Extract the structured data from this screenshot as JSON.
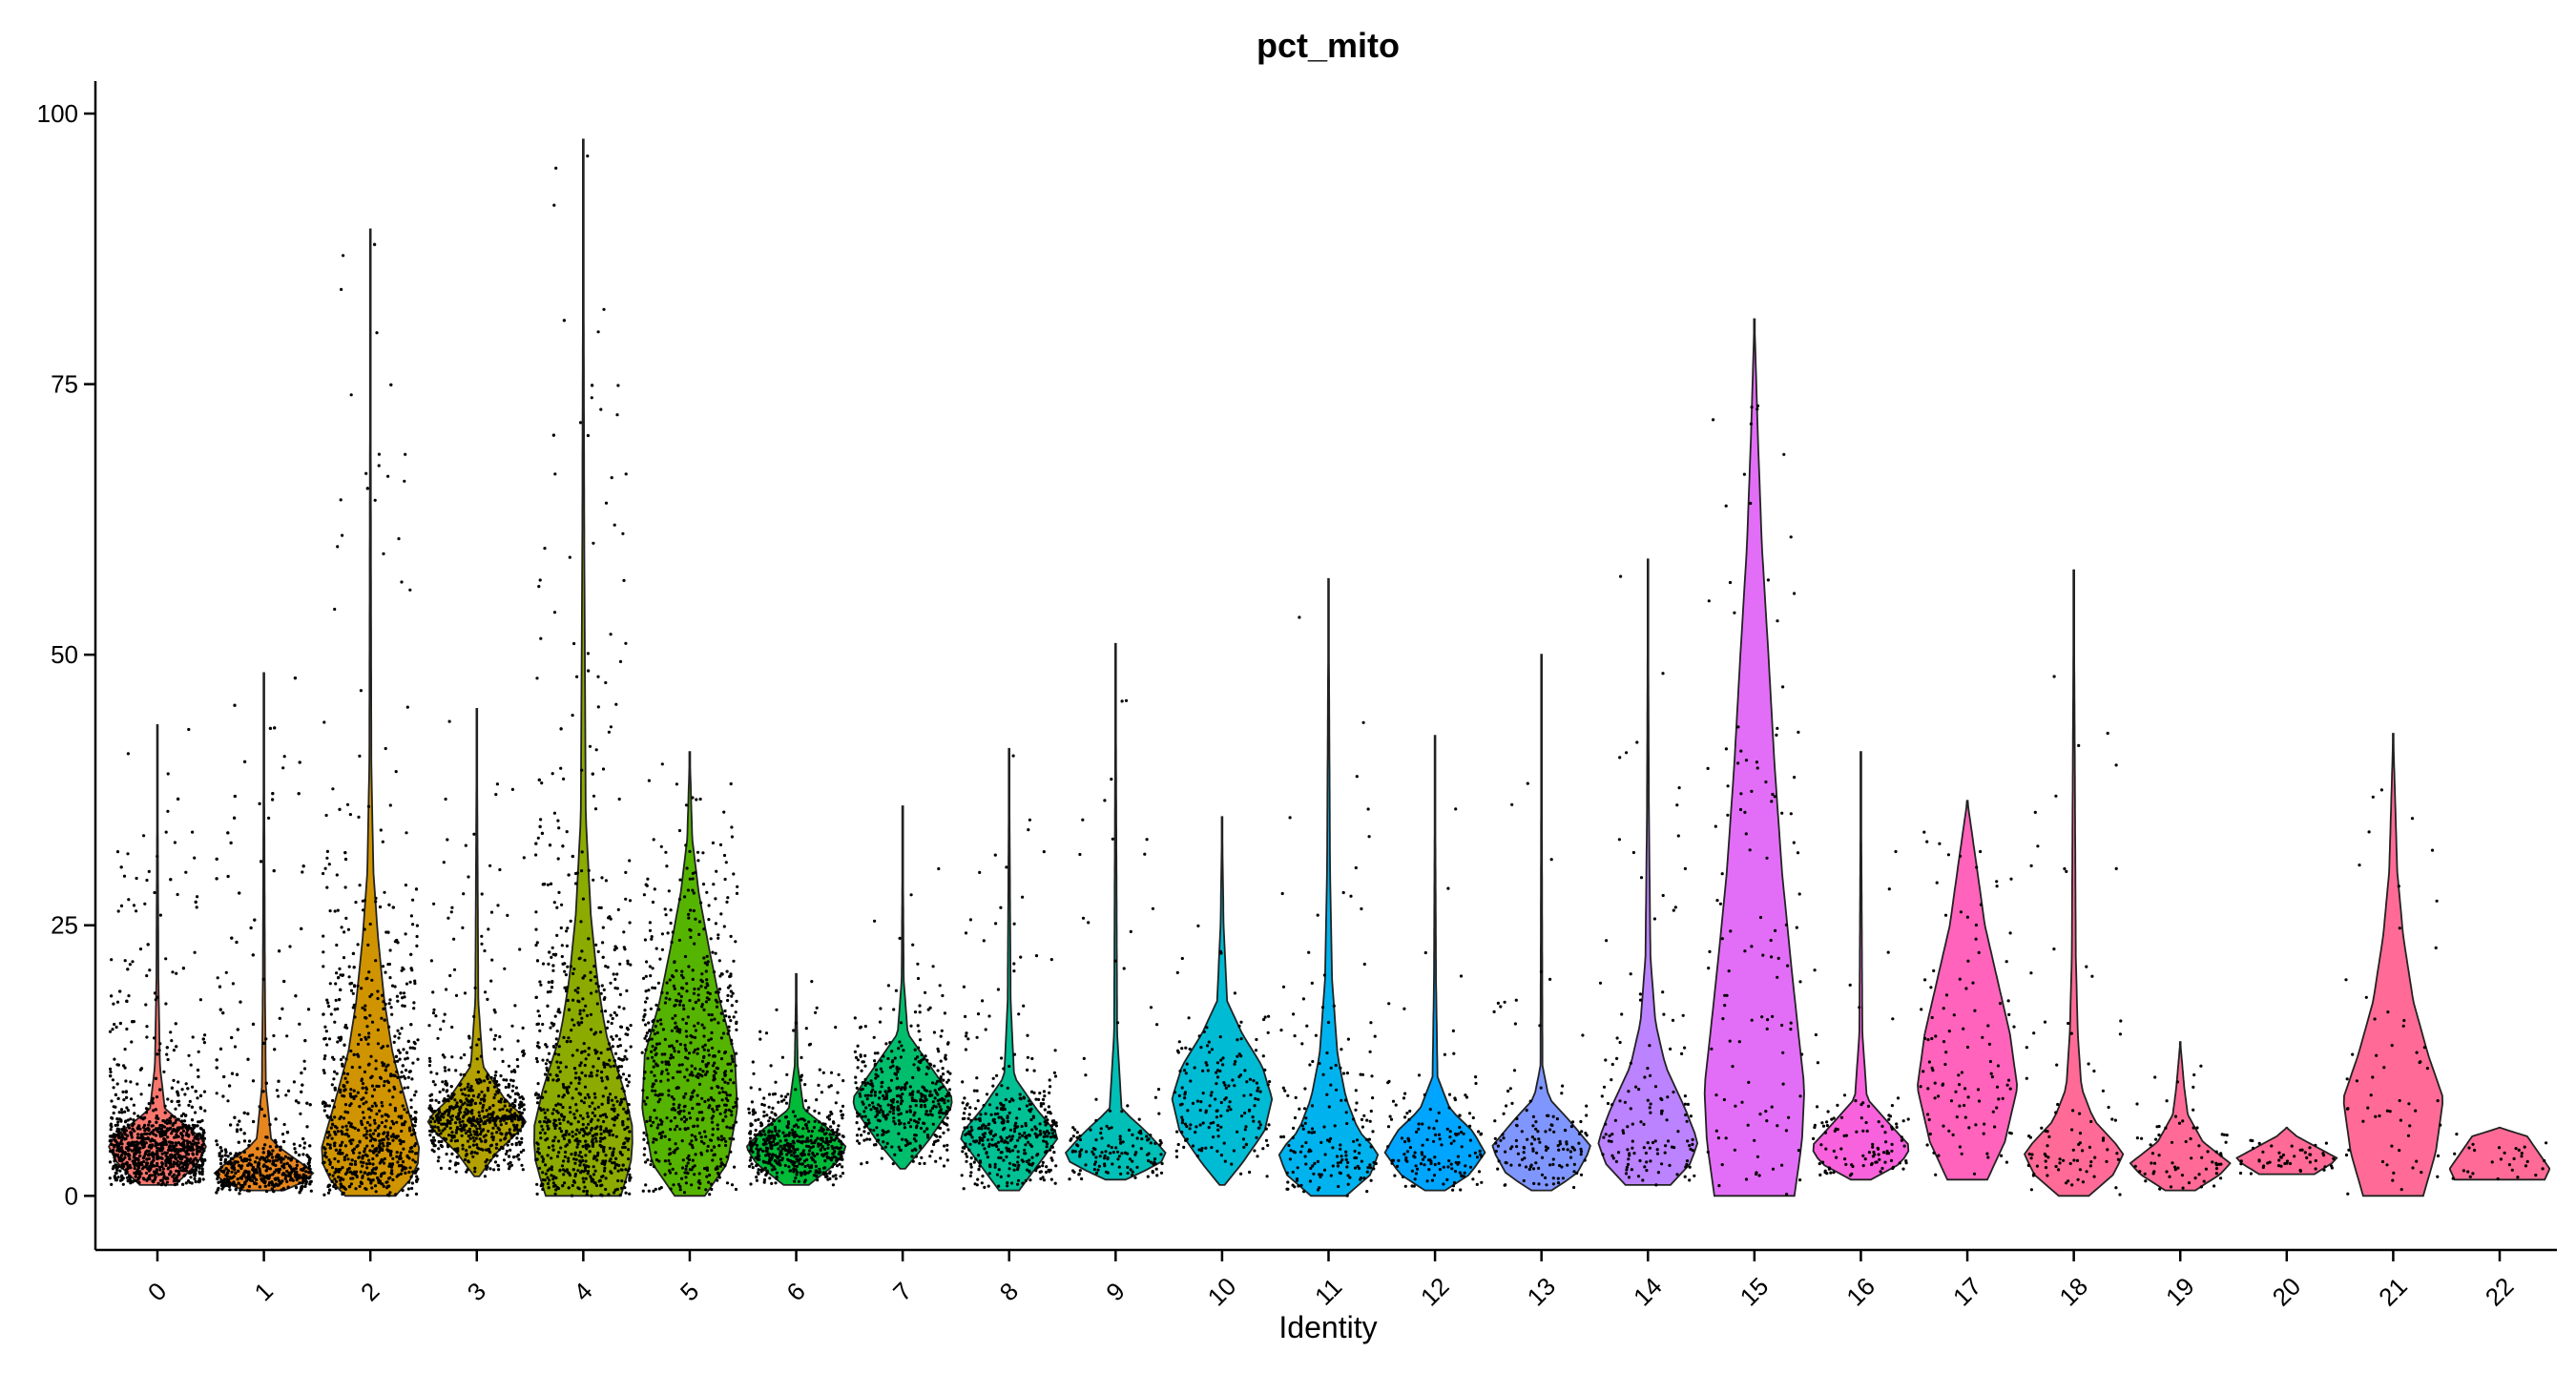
{
  "chart_data": {
    "type": "violin",
    "title": "pct_mito",
    "xlabel": "Identity",
    "ylabel": "",
    "ylim": [
      -5,
      103
    ],
    "yticks": [
      0,
      25,
      50,
      75,
      100
    ],
    "grid": false,
    "legend": "none",
    "categories": [
      "0",
      "1",
      "2",
      "3",
      "4",
      "5",
      "6",
      "7",
      "8",
      "9",
      "10",
      "11",
      "12",
      "13",
      "14",
      "15",
      "16",
      "17",
      "18",
      "19",
      "20",
      "21",
      "22"
    ],
    "colors": [
      "#F8766D",
      "#E7851E",
      "#D09400",
      "#B2A100",
      "#8BAB00",
      "#55B400",
      "#00BA38",
      "#00BE6C",
      "#00C094",
      "#00BFB6",
      "#00BBD4",
      "#00B3EE",
      "#00A5FF",
      "#7F96FF",
      "#BB83FF",
      "#E26EF7",
      "#F962DD",
      "#FF63BB",
      "#FF6B96",
      "#FF6B96",
      "#FF6B96",
      "#FF6B96",
      "#FF6B96"
    ],
    "violins": [
      {
        "identity": "0",
        "min": 1.0,
        "max": 43.5,
        "median": 4.8,
        "profile": [
          [
            1,
            0.35
          ],
          [
            3,
            0.8
          ],
          [
            4.8,
            1.0
          ],
          [
            6,
            0.7
          ],
          [
            8,
            0.15
          ],
          [
            12,
            0.05
          ],
          [
            20,
            0.02
          ],
          [
            43.5,
            0.0
          ]
        ]
      },
      {
        "identity": "1",
        "min": 0.5,
        "max": 48.3,
        "median": 2.2,
        "profile": [
          [
            0.5,
            0.4
          ],
          [
            1.5,
            0.9
          ],
          [
            2.2,
            1.0
          ],
          [
            3.5,
            0.6
          ],
          [
            5,
            0.15
          ],
          [
            10,
            0.04
          ],
          [
            20,
            0.02
          ],
          [
            48.3,
            0.0
          ]
        ]
      },
      {
        "identity": "2",
        "min": 0.0,
        "max": 89.3,
        "median": 4.0,
        "profile": [
          [
            0,
            0.5
          ],
          [
            2,
            0.9
          ],
          [
            4,
            1.0
          ],
          [
            8,
            0.75
          ],
          [
            13,
            0.45
          ],
          [
            18,
            0.28
          ],
          [
            24,
            0.15
          ],
          [
            30,
            0.06
          ],
          [
            40,
            0.02
          ],
          [
            89.3,
            0.0
          ]
        ]
      },
      {
        "identity": "3",
        "min": 1.8,
        "max": 45.0,
        "median": 7.0,
        "profile": [
          [
            1.8,
            0.05
          ],
          [
            4,
            0.4
          ],
          [
            6,
            0.85
          ],
          [
            7,
            1.0
          ],
          [
            9,
            0.55
          ],
          [
            12,
            0.12
          ],
          [
            18,
            0.03
          ],
          [
            45,
            0.0
          ]
        ]
      },
      {
        "identity": "4",
        "min": 0.0,
        "max": 97.6,
        "median": 6.0,
        "profile": [
          [
            0,
            0.75
          ],
          [
            3,
            0.95
          ],
          [
            6,
            1.0
          ],
          [
            10,
            0.8
          ],
          [
            15,
            0.45
          ],
          [
            20,
            0.28
          ],
          [
            26,
            0.15
          ],
          [
            35,
            0.05
          ],
          [
            60,
            0.02
          ],
          [
            97.6,
            0.0
          ]
        ]
      },
      {
        "identity": "5",
        "min": 0.0,
        "max": 41.0,
        "median": 10.0,
        "profile": [
          [
            0,
            0.3
          ],
          [
            3,
            0.75
          ],
          [
            8,
            0.95
          ],
          [
            13,
            0.9
          ],
          [
            18,
            0.6
          ],
          [
            23,
            0.38
          ],
          [
            28,
            0.18
          ],
          [
            33,
            0.05
          ],
          [
            41,
            0.0
          ]
        ]
      },
      {
        "identity": "6",
        "min": 1.0,
        "max": 20.5,
        "median": 4.5,
        "profile": [
          [
            1,
            0.25
          ],
          [
            3,
            0.8
          ],
          [
            4.5,
            1.0
          ],
          [
            6,
            0.7
          ],
          [
            8,
            0.15
          ],
          [
            12,
            0.03
          ],
          [
            20.5,
            0.0
          ]
        ]
      },
      {
        "identity": "7",
        "min": 2.5,
        "max": 36.0,
        "median": 8.5,
        "profile": [
          [
            2.5,
            0.05
          ],
          [
            5,
            0.5
          ],
          [
            8,
            0.95
          ],
          [
            9,
            1.0
          ],
          [
            12,
            0.55
          ],
          [
            15,
            0.1
          ],
          [
            20,
            0.02
          ],
          [
            36,
            0.0
          ]
        ]
      },
      {
        "identity": "8",
        "min": 0.5,
        "max": 41.3,
        "median": 5.5,
        "profile": [
          [
            0.5,
            0.2
          ],
          [
            3,
            0.6
          ],
          [
            5.5,
            1.0
          ],
          [
            8,
            0.55
          ],
          [
            11,
            0.1
          ],
          [
            18,
            0.03
          ],
          [
            41.3,
            0.0
          ]
        ]
      },
      {
        "identity": "9",
        "min": 1.5,
        "max": 51.0,
        "median": 3.8,
        "profile": [
          [
            1.5,
            0.2
          ],
          [
            3,
            0.9
          ],
          [
            4,
            1.0
          ],
          [
            6,
            0.6
          ],
          [
            8,
            0.12
          ],
          [
            15,
            0.03
          ],
          [
            51,
            0.0
          ]
        ]
      },
      {
        "identity": "10",
        "min": 1.0,
        "max": 35.0,
        "median": 8.5,
        "profile": [
          [
            1,
            0.05
          ],
          [
            3,
            0.4
          ],
          [
            6,
            0.85
          ],
          [
            9,
            1.0
          ],
          [
            12,
            0.8
          ],
          [
            15,
            0.4
          ],
          [
            18,
            0.1
          ],
          [
            25,
            0.03
          ],
          [
            35,
            0.0
          ]
        ]
      },
      {
        "identity": "11",
        "min": 0.0,
        "max": 57.0,
        "median": 4.5,
        "profile": [
          [
            0,
            0.35
          ],
          [
            2,
            0.85
          ],
          [
            4,
            1.0
          ],
          [
            6,
            0.6
          ],
          [
            9,
            0.35
          ],
          [
            13,
            0.18
          ],
          [
            20,
            0.07
          ],
          [
            30,
            0.03
          ],
          [
            57,
            0.0
          ]
        ]
      },
      {
        "identity": "12",
        "min": 0.5,
        "max": 42.5,
        "median": 4.5,
        "profile": [
          [
            0.5,
            0.2
          ],
          [
            2,
            0.7
          ],
          [
            4,
            1.0
          ],
          [
            6,
            0.75
          ],
          [
            8,
            0.3
          ],
          [
            11,
            0.05
          ],
          [
            20,
            0.02
          ],
          [
            42.5,
            0.0
          ]
        ]
      },
      {
        "identity": "13",
        "min": 0.5,
        "max": 50.0,
        "median": 4.5,
        "profile": [
          [
            0.5,
            0.2
          ],
          [
            2,
            0.7
          ],
          [
            4.5,
            1.0
          ],
          [
            7,
            0.55
          ],
          [
            9,
            0.15
          ],
          [
            12,
            0.02
          ],
          [
            50,
            0.0
          ]
        ]
      },
      {
        "identity": "14",
        "min": 1.0,
        "max": 58.8,
        "median": 5.0,
        "profile": [
          [
            1,
            0.45
          ],
          [
            3,
            0.85
          ],
          [
            5,
            1.0
          ],
          [
            8,
            0.75
          ],
          [
            12,
            0.35
          ],
          [
            16,
            0.15
          ],
          [
            22,
            0.05
          ],
          [
            35,
            0.02
          ],
          [
            58.8,
            0.0
          ]
        ]
      },
      {
        "identity": "15",
        "min": 0.0,
        "max": 81.0,
        "median": 12.0,
        "profile": [
          [
            0,
            0.8
          ],
          [
            5,
            0.95
          ],
          [
            10,
            1.0
          ],
          [
            15,
            0.88
          ],
          [
            22,
            0.72
          ],
          [
            30,
            0.55
          ],
          [
            40,
            0.4
          ],
          [
            50,
            0.28
          ],
          [
            60,
            0.15
          ],
          [
            70,
            0.07
          ],
          [
            81,
            0.0
          ]
        ]
      },
      {
        "identity": "16",
        "min": 1.5,
        "max": 41.0,
        "median": 4.5,
        "profile": [
          [
            1.5,
            0.2
          ],
          [
            3,
            0.8
          ],
          [
            4.5,
            1.0
          ],
          [
            6.5,
            0.6
          ],
          [
            9,
            0.12
          ],
          [
            15,
            0.03
          ],
          [
            41,
            0.0
          ]
        ]
      },
      {
        "identity": "17",
        "min": 1.5,
        "max": 36.5,
        "median": 10.0,
        "profile": [
          [
            1.5,
            0.4
          ],
          [
            5,
            0.75
          ],
          [
            10,
            1.0
          ],
          [
            15,
            0.85
          ],
          [
            20,
            0.6
          ],
          [
            25,
            0.35
          ],
          [
            30,
            0.2
          ],
          [
            36.5,
            0.0
          ]
        ]
      },
      {
        "identity": "18",
        "min": 0.0,
        "max": 57.8,
        "median": 4.0,
        "profile": [
          [
            0,
            0.3
          ],
          [
            2,
            0.8
          ],
          [
            4,
            1.0
          ],
          [
            7,
            0.4
          ],
          [
            10,
            0.15
          ],
          [
            15,
            0.08
          ],
          [
            22,
            0.04
          ],
          [
            57.8,
            0.0
          ]
        ]
      },
      {
        "identity": "19",
        "min": 0.5,
        "max": 14.2,
        "median": 3.0,
        "profile": [
          [
            0.5,
            0.3
          ],
          [
            2,
            0.8
          ],
          [
            3,
            1.0
          ],
          [
            5,
            0.45
          ],
          [
            7.5,
            0.15
          ],
          [
            10,
            0.08
          ],
          [
            14.2,
            0.0
          ]
        ]
      },
      {
        "identity": "20",
        "min": 2.0,
        "max": 6.3,
        "median": 3.5,
        "profile": [
          [
            2,
            0.55
          ],
          [
            3,
            0.9
          ],
          [
            3.5,
            1.0
          ],
          [
            4.5,
            0.6
          ],
          [
            5.5,
            0.2
          ],
          [
            6.3,
            0.0
          ]
        ]
      },
      {
        "identity": "21",
        "min": 0.0,
        "max": 42.7,
        "median": 9.0,
        "profile": [
          [
            0,
            0.6
          ],
          [
            4,
            0.85
          ],
          [
            9,
            1.0
          ],
          [
            13,
            0.7
          ],
          [
            18,
            0.4
          ],
          [
            24,
            0.2
          ],
          [
            30,
            0.08
          ],
          [
            42.7,
            0.0
          ]
        ]
      },
      {
        "identity": "22",
        "min": 1.5,
        "max": 6.3,
        "median": 2.5,
        "profile": [
          [
            1.5,
            0.9
          ],
          [
            2.5,
            1.0
          ],
          [
            3.5,
            0.85
          ],
          [
            4.5,
            0.7
          ],
          [
            5.5,
            0.55
          ],
          [
            6.3,
            0.0
          ]
        ]
      }
    ]
  }
}
